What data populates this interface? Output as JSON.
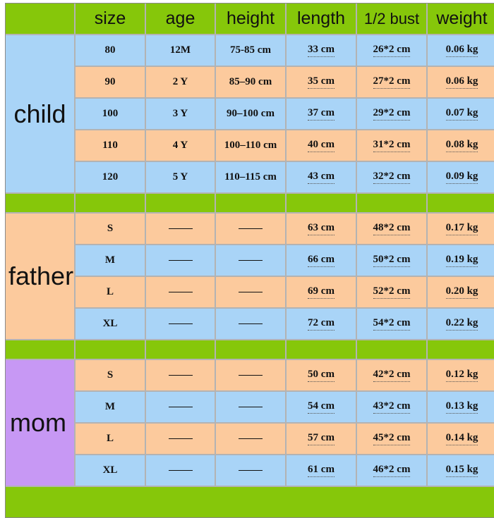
{
  "headers": [
    "size",
    "age",
    "height",
    "length",
    "1/2 bust",
    "weight"
  ],
  "groups": [
    {
      "label": "child",
      "rows": [
        {
          "size": "80",
          "age": "12M",
          "height": "75-85 cm",
          "length": "33 cm",
          "bust": "26*2 cm",
          "weight": "0.06 kg"
        },
        {
          "size": "90",
          "age": "2 Y",
          "height": "85–90 cm",
          "length": "35 cm",
          "bust": "27*2 cm",
          "weight": "0.06 kg"
        },
        {
          "size": "100",
          "age": "3 Y",
          "height": "90–100 cm",
          "length": "37 cm",
          "bust": "29*2 cm",
          "weight": "0.07 kg"
        },
        {
          "size": "110",
          "age": "4 Y",
          "height": "100–110 cm",
          "length": "40 cm",
          "bust": "31*2 cm",
          "weight": "0.08 kg"
        },
        {
          "size": "120",
          "age": "5 Y",
          "height": "110–115 cm",
          "length": "43 cm",
          "bust": "32*2 cm",
          "weight": "0.09 kg"
        }
      ]
    },
    {
      "label": "father",
      "rows": [
        {
          "size": "S",
          "length": "63 cm",
          "bust": "48*2 cm",
          "weight": "0.17 kg"
        },
        {
          "size": "M",
          "length": "66 cm",
          "bust": "50*2 cm",
          "weight": "0.19 kg"
        },
        {
          "size": "L",
          "length": "69 cm",
          "bust": "52*2 cm",
          "weight": "0.20 kg"
        },
        {
          "size": "XL",
          "length": "72 cm",
          "bust": "54*2 cm",
          "weight": "0.22 kg"
        }
      ]
    },
    {
      "label": "mom",
      "rows": [
        {
          "size": "S",
          "length": "50 cm",
          "bust": "42*2 cm",
          "weight": "0.12 kg"
        },
        {
          "size": "M",
          "length": "54 cm",
          "bust": "43*2 cm",
          "weight": "0.13 kg"
        },
        {
          "size": "L",
          "length": "57 cm",
          "bust": "45*2 cm",
          "weight": "0.14 kg"
        },
        {
          "size": "XL",
          "length": "61 cm",
          "bust": "46*2 cm",
          "weight": "0.15 kg"
        }
      ]
    }
  ],
  "colors": {
    "header_green": "#86c70a",
    "row_blue": "#a9d4f7",
    "row_peach": "#fcca9d",
    "mom_purple": "#c798f4"
  }
}
